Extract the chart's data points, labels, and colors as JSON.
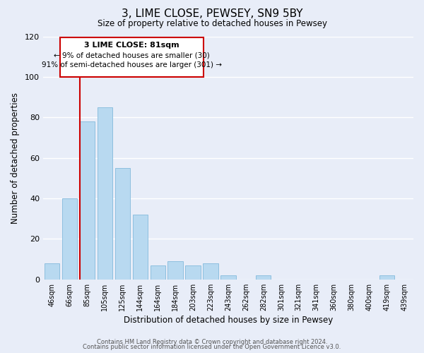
{
  "title": "3, LIME CLOSE, PEWSEY, SN9 5BY",
  "subtitle": "Size of property relative to detached houses in Pewsey",
  "xlabel": "Distribution of detached houses by size in Pewsey",
  "ylabel": "Number of detached properties",
  "categories": [
    "46sqm",
    "66sqm",
    "85sqm",
    "105sqm",
    "125sqm",
    "144sqm",
    "164sqm",
    "184sqm",
    "203sqm",
    "223sqm",
    "243sqm",
    "262sqm",
    "282sqm",
    "301sqm",
    "321sqm",
    "341sqm",
    "360sqm",
    "380sqm",
    "400sqm",
    "419sqm",
    "439sqm"
  ],
  "values": [
    8,
    40,
    78,
    85,
    55,
    32,
    7,
    9,
    7,
    8,
    2,
    0,
    2,
    0,
    0,
    0,
    0,
    0,
    0,
    2,
    0
  ],
  "bar_color": "#b8d9f0",
  "bar_edge_color": "#8dbfdf",
  "vline_color": "#cc0000",
  "ylim": [
    0,
    120
  ],
  "yticks": [
    0,
    20,
    40,
    60,
    80,
    100,
    120
  ],
  "annotation_title": "3 LIME CLOSE: 81sqm",
  "annotation_line1": "← 9% of detached houses are smaller (30)",
  "annotation_line2": "91% of semi-detached houses are larger (301) →",
  "annotation_box_color": "#ffffff",
  "annotation_box_edge": "#cc0000",
  "footer_line1": "Contains HM Land Registry data © Crown copyright and database right 2024.",
  "footer_line2": "Contains public sector information licensed under the Open Government Licence v3.0.",
  "bg_color": "#e8edf8",
  "plot_bg_color": "#e8edf8",
  "grid_color": "#ffffff",
  "vline_bar_index": 2
}
